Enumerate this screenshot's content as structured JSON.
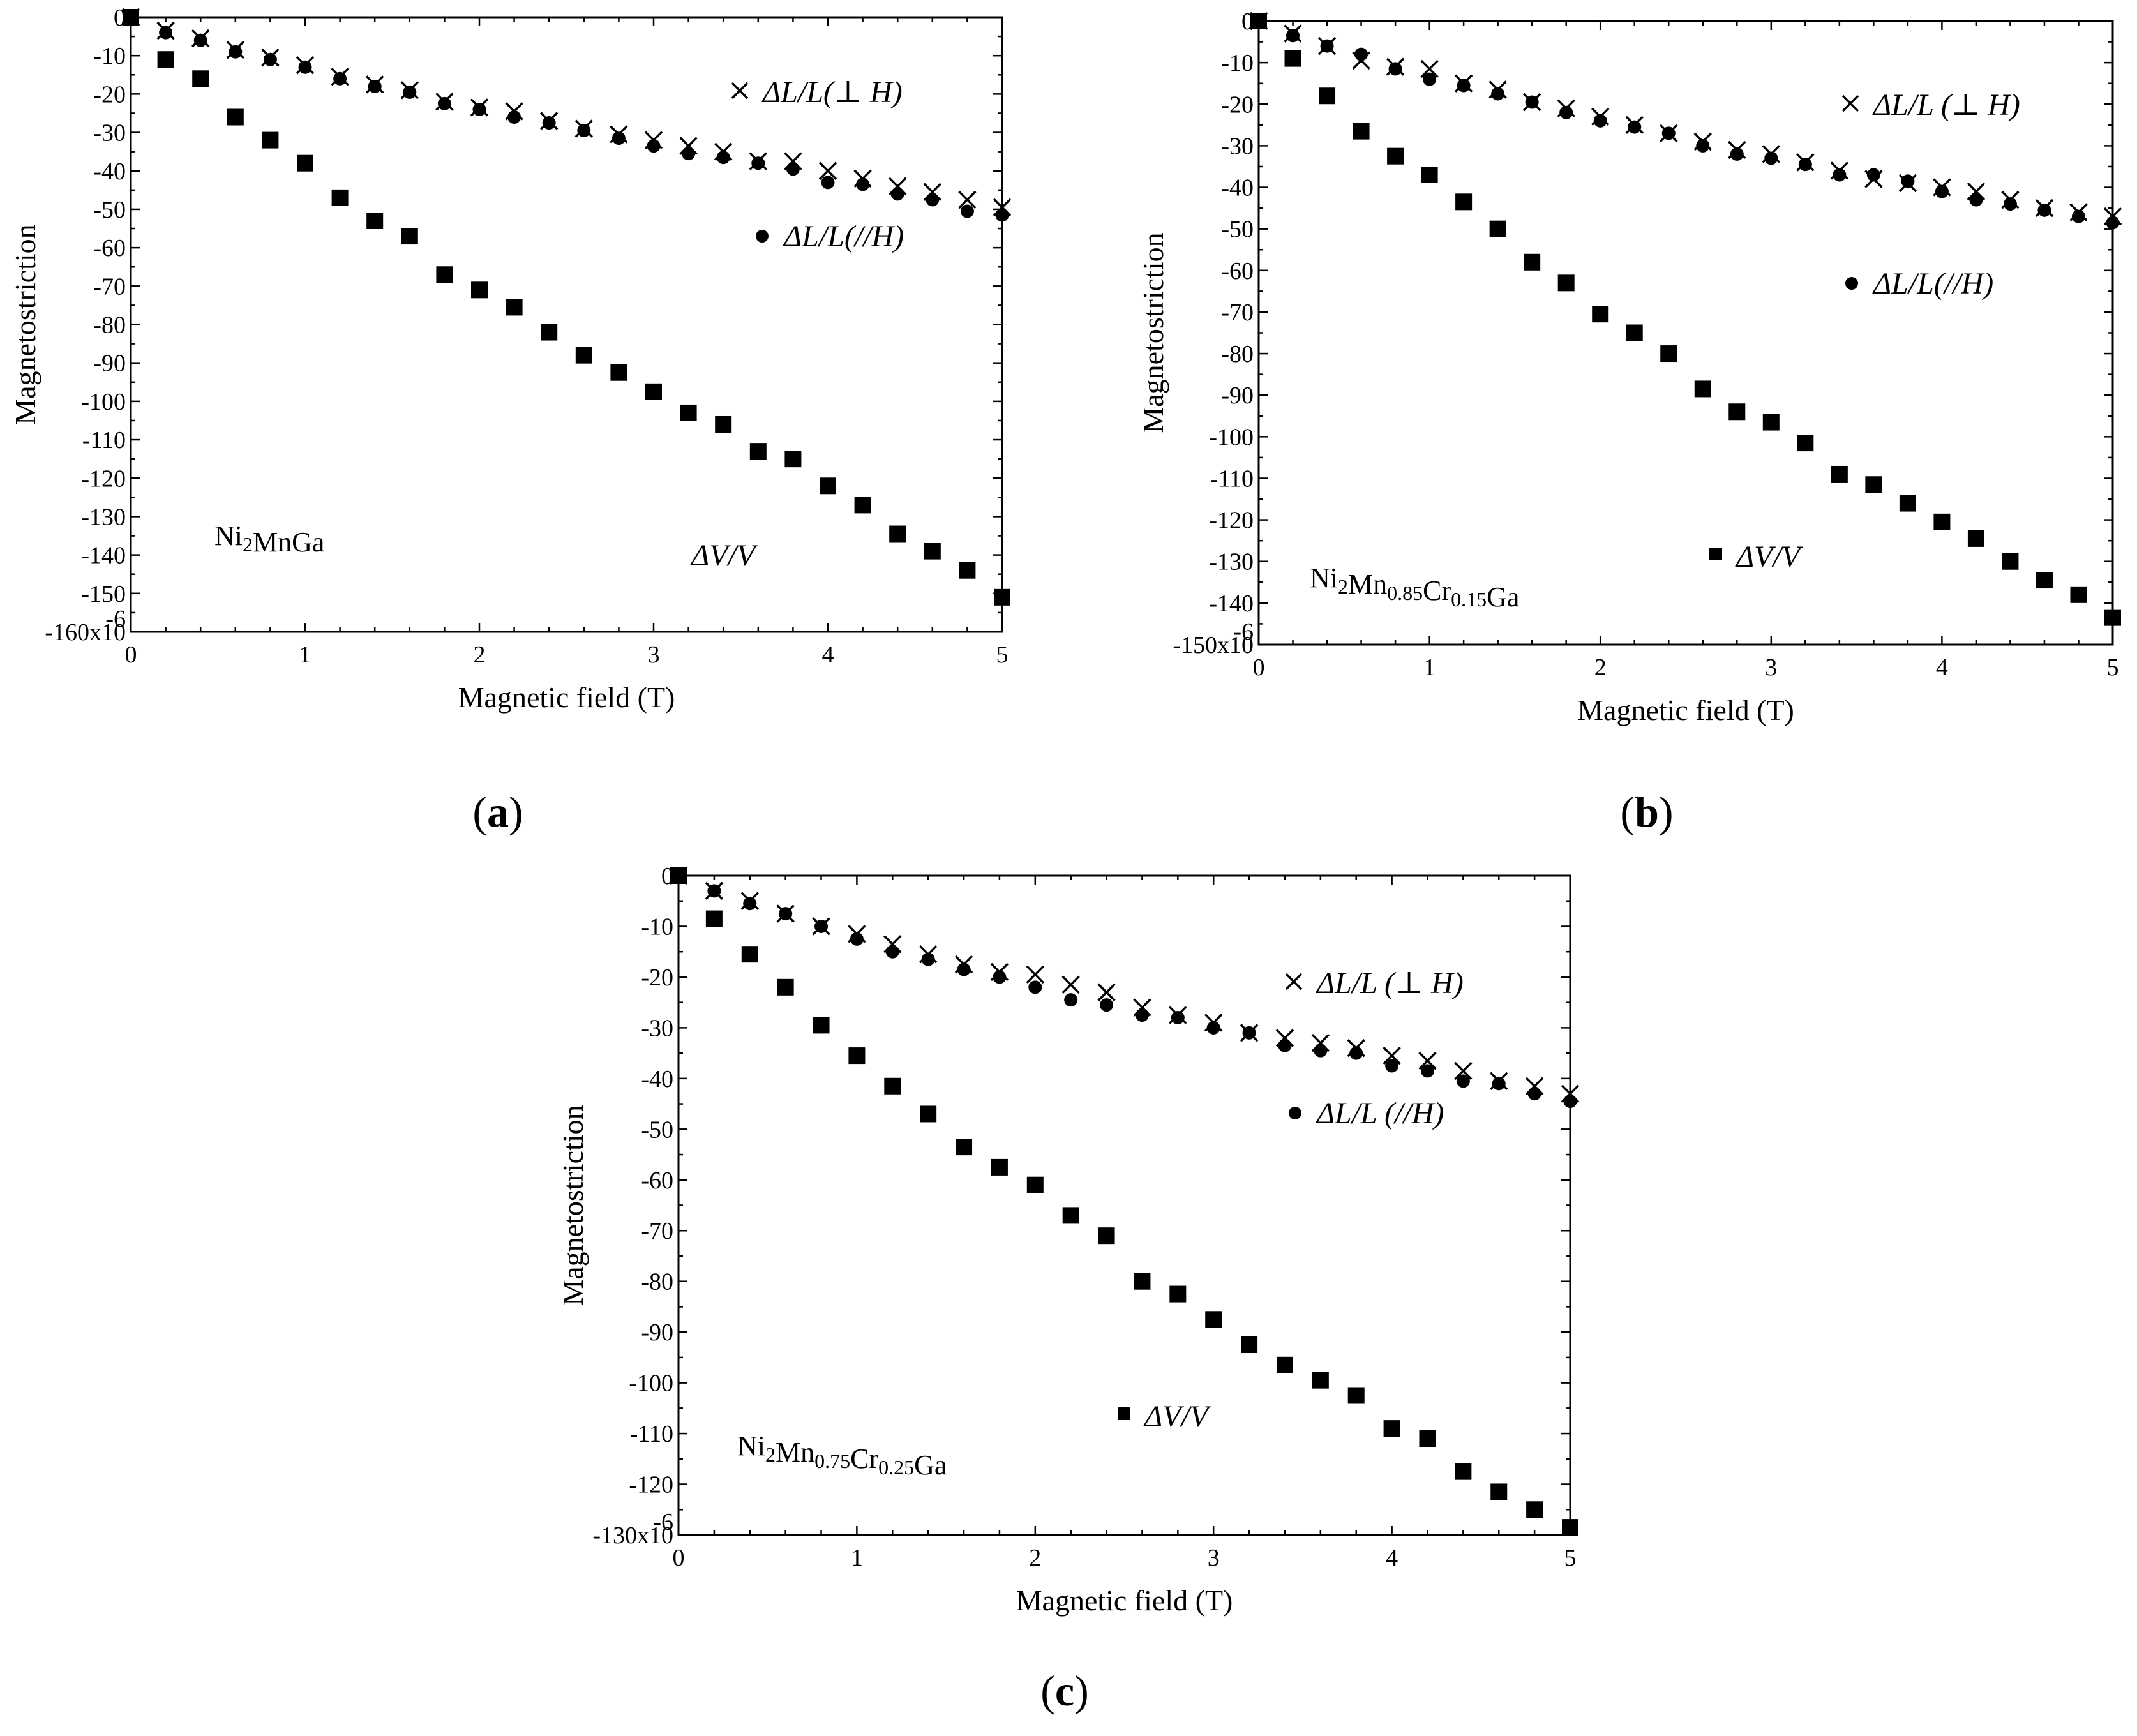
{
  "chart_data": [
    {
      "type": "scatter",
      "panel": "(a)",
      "panel_letter": "a",
      "sample": {
        "base": "Ni",
        "sub1": "2",
        "mid": "MnGa",
        "sub2": "",
        "mid2": "",
        "sub3": "",
        "tail": ""
      },
      "xlabel": "Magnetic field (T)",
      "ylabel": "Magnetostriction",
      "xlim": [
        0,
        5
      ],
      "ylim": [
        -160,
        0
      ],
      "x_ticks": [
        0,
        1,
        2,
        3,
        4,
        5
      ],
      "y_ticks": [
        0,
        -10,
        -20,
        -30,
        -40,
        -50,
        -60,
        -70,
        -80,
        -90,
        -100,
        -110,
        -120,
        -130,
        -140,
        -150,
        -160
      ],
      "y_tick_labels": [
        "0",
        "-10",
        "-20",
        "-30",
        "-40",
        "-50",
        "-60",
        "-70",
        "-80",
        "-90",
        "-100",
        "-110",
        "-120",
        "-130",
        "-140",
        "-150",
        "-160x10"
      ],
      "y_exponent": "-6",
      "x": [
        0,
        0.2,
        0.4,
        0.6,
        0.8,
        1.0,
        1.2,
        1.4,
        1.6,
        1.8,
        2.0,
        2.2,
        2.4,
        2.6,
        2.8,
        3.0,
        3.2,
        3.4,
        3.6,
        3.8,
        4.0,
        4.2,
        4.4,
        4.6,
        4.8,
        5.0
      ],
      "series": [
        {
          "name": "ΔL/L(⊥ H)",
          "marker": "cross",
          "values": [
            0,
            -3.5,
            -5.5,
            -8.5,
            -10.5,
            -12.5,
            -15.5,
            -17.5,
            -19,
            -22,
            -23.5,
            -24.5,
            -27,
            -29,
            -30.5,
            -32,
            -33.5,
            -35,
            -37.5,
            -37.5,
            -40,
            -42,
            -44,
            -45.5,
            -47.5,
            -49.5
          ]
        },
        {
          "name": "ΔL/L(//H)",
          "marker": "circle",
          "values": [
            0,
            -4,
            -6,
            -9,
            -11,
            -13,
            -16,
            -18,
            -19.5,
            -22.5,
            -24,
            -26,
            -27.5,
            -29.5,
            -31.5,
            -33.5,
            -35.5,
            -36.5,
            -38,
            -39.5,
            -43,
            -43.5,
            -46,
            -47.5,
            -50.5,
            -51.5
          ]
        },
        {
          "name": "ΔV/V",
          "marker": "square",
          "values": [
            0,
            -11,
            -16,
            -26,
            -32,
            -38,
            -47,
            -53,
            -57,
            -67,
            -71,
            -75.5,
            -82,
            -88,
            -92.5,
            -97.5,
            -103,
            -106,
            -113,
            -115,
            -122,
            -127,
            -134.5,
            -139,
            -144,
            -151
          ]
        }
      ],
      "legend": {
        "cross": "ΔL/L(⊥ H)",
        "circle": "ΔL/L(//H)",
        "square": "ΔV/V"
      }
    },
    {
      "type": "scatter",
      "panel": "(b)",
      "panel_letter": "b",
      "sample": {
        "base": "Ni",
        "sub1": "2",
        "mid": "Mn",
        "sub2": "0.85",
        "mid2": "Cr",
        "sub3": "0.15",
        "tail": "Ga"
      },
      "xlabel": "Magnetic field (T)",
      "ylabel": "Magnetostriction",
      "xlim": [
        0,
        5
      ],
      "ylim": [
        -150,
        0
      ],
      "x_ticks": [
        0,
        1,
        2,
        3,
        4,
        5
      ],
      "y_ticks": [
        0,
        -10,
        -20,
        -30,
        -40,
        -50,
        -60,
        -70,
        -80,
        -90,
        -100,
        -110,
        -120,
        -130,
        -140,
        -150
      ],
      "y_tick_labels": [
        "0",
        "-10",
        "-20",
        "-30",
        "-40",
        "-50",
        "-60",
        "-70",
        "-80",
        "-90",
        "-100",
        "-110",
        "-120",
        "-130",
        "-140",
        "-150x10"
      ],
      "y_exponent": "-6",
      "x": [
        0,
        0.2,
        0.4,
        0.6,
        0.8,
        1.0,
        1.2,
        1.4,
        1.6,
        1.8,
        2.0,
        2.2,
        2.4,
        2.6,
        2.8,
        3.0,
        3.2,
        3.4,
        3.6,
        3.8,
        4.0,
        4.2,
        4.4,
        4.6,
        4.8,
        5.0
      ],
      "series": [
        {
          "name": "ΔL/L (⊥ H)",
          "marker": "cross",
          "values": [
            0,
            -3,
            -6,
            -9.5,
            -11,
            -11.5,
            -15,
            -16.5,
            -19.5,
            -21,
            -23,
            -25,
            -27,
            -29,
            -31,
            -32,
            -34,
            -36,
            -38,
            -39,
            -40,
            -41,
            -43,
            -45,
            -46,
            -47
          ]
        },
        {
          "name": "ΔL/L(//H)",
          "marker": "circle",
          "values": [
            0,
            -3.5,
            -6,
            -8,
            -11.5,
            -14,
            -15.5,
            -17.5,
            -19.5,
            -22,
            -24,
            -25.5,
            -27,
            -30,
            -32,
            -33,
            -34.5,
            -37,
            -37,
            -38.5,
            -41,
            -43,
            -44,
            -45.5,
            -47,
            -48.5
          ]
        },
        {
          "name": "ΔV/V",
          "marker": "square",
          "values": [
            0,
            -9,
            -18,
            -26.5,
            -32.5,
            -37,
            -43.5,
            -50,
            -58,
            -63,
            -70.5,
            -75,
            -80,
            -88.5,
            -94,
            -96.5,
            -101.5,
            -109,
            -111.5,
            -116,
            -120.5,
            -124.5,
            -130,
            -134.5,
            -138,
            -143.5
          ]
        }
      ],
      "legend": {
        "cross": "ΔL/L (⊥ H)",
        "circle": "ΔL/L(//H)",
        "square": "ΔV/V"
      }
    },
    {
      "type": "scatter",
      "panel": "(c)",
      "panel_letter": "c",
      "sample": {
        "base": "Ni",
        "sub1": "2",
        "mid": "Mn",
        "sub2": "0.75",
        "mid2": "Cr",
        "sub3": "0.25",
        "tail": "Ga"
      },
      "xlabel": "Magnetic field (T)",
      "ylabel": "Magnetostriction",
      "xlim": [
        0,
        5
      ],
      "ylim": [
        -130,
        0
      ],
      "x_ticks": [
        0,
        1,
        2,
        3,
        4,
        5
      ],
      "y_ticks": [
        0,
        -10,
        -20,
        -30,
        -40,
        -50,
        -60,
        -70,
        -80,
        -90,
        -100,
        -110,
        -120,
        -130
      ],
      "y_tick_labels": [
        "0",
        "-10",
        "-20",
        "-30",
        "-40",
        "-50",
        "-60",
        "-70",
        "-80",
        "-90",
        "-100",
        "-110",
        "-120",
        "-130x10"
      ],
      "y_exponent": "-6",
      "x": [
        0,
        0.2,
        0.4,
        0.6,
        0.8,
        1.0,
        1.2,
        1.4,
        1.6,
        1.8,
        2.0,
        2.2,
        2.4,
        2.6,
        2.8,
        3.0,
        3.2,
        3.4,
        3.6,
        3.8,
        4.0,
        4.2,
        4.4,
        4.6,
        4.8,
        5.0
      ],
      "series": [
        {
          "name": "ΔL/L (⊥ H)",
          "marker": "cross",
          "values": [
            0,
            -3,
            -5,
            -7.5,
            -10,
            -11.5,
            -13.5,
            -15.5,
            -17.5,
            -19,
            -19.5,
            -21.5,
            -23,
            -26,
            -27.5,
            -29,
            -31,
            -32,
            -33,
            -34,
            -35.5,
            -36.5,
            -38.5,
            -40.5,
            -41.5,
            -43
          ]
        },
        {
          "name": "ΔL/L (//H)",
          "marker": "circle",
          "values": [
            0,
            -3,
            -5.5,
            -7.5,
            -10,
            -12.5,
            -15,
            -16.5,
            -18.5,
            -20,
            -22,
            -24.5,
            -25.5,
            -27.5,
            -28,
            -30,
            -31,
            -33.5,
            -34.5,
            -35,
            -37.5,
            -38.5,
            -40.5,
            -41,
            -43,
            -44.5
          ]
        },
        {
          "name": "ΔV/V",
          "marker": "square",
          "values": [
            0,
            -8.5,
            -15.5,
            -22,
            -29.5,
            -35.5,
            -41.5,
            -47,
            -53.5,
            -57.5,
            -61,
            -67,
            -71,
            -80,
            -82.5,
            -87.5,
            -92.5,
            -96.5,
            -99.5,
            -102.5,
            -109,
            -111,
            -117.5,
            -121.5,
            -125,
            -128.5
          ]
        }
      ],
      "legend": {
        "cross": "ΔL/L (⊥ H)",
        "circle": "ΔL/L (//H)",
        "square": "ΔV/V"
      }
    }
  ]
}
